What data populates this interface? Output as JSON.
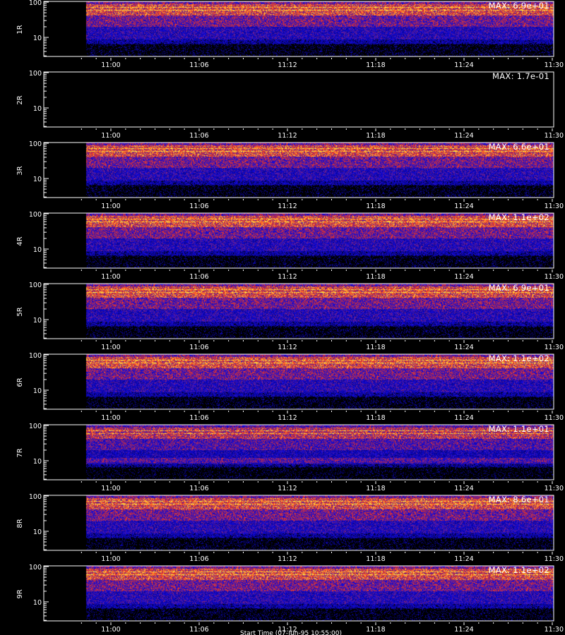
{
  "chart_data": [
    {
      "type": "heatmap",
      "panel_label": "1R",
      "max_label": "MAX: 6.9e+01",
      "empty": false,
      "x_ticks": [
        "11:00",
        "11:06",
        "11:12",
        "11:18",
        "11:24",
        "11:30"
      ],
      "y_ticks": [
        "10",
        "100"
      ],
      "y_scale": "log",
      "colors": {
        "low": "#0a0a8c",
        "mid": "#e0301e",
        "high": "#ffd84a"
      }
    },
    {
      "type": "heatmap",
      "panel_label": "2R",
      "max_label": "MAX: 1.7e-01",
      "empty": true,
      "x_ticks": [
        "11:00",
        "11:06",
        "11:12",
        "11:18",
        "11:24",
        "11:30"
      ],
      "y_ticks": [
        "10",
        "100"
      ],
      "y_scale": "log",
      "colors": {
        "low": "#0a0a8c",
        "mid": "#e0301e",
        "high": "#ffd84a"
      }
    },
    {
      "type": "heatmap",
      "panel_label": "3R",
      "max_label": "MAX: 6.6e+01",
      "empty": false,
      "x_ticks": [
        "11:00",
        "11:06",
        "11:12",
        "11:18",
        "11:24",
        "11:30"
      ],
      "y_ticks": [
        "10",
        "100"
      ],
      "y_scale": "log",
      "colors": {
        "low": "#0a0a8c",
        "mid": "#e0301e",
        "high": "#ffd84a"
      }
    },
    {
      "type": "heatmap",
      "panel_label": "4R",
      "max_label": "MAX: 1.1e+02",
      "empty": false,
      "x_ticks": [
        "11:00",
        "11:06",
        "11:12",
        "11:18",
        "11:24",
        "11:30"
      ],
      "y_ticks": [
        "10",
        "100"
      ],
      "y_scale": "log",
      "colors": {
        "low": "#0a0a8c",
        "mid": "#e0301e",
        "high": "#ffd84a"
      }
    },
    {
      "type": "heatmap",
      "panel_label": "5R",
      "max_label": "MAX: 6.9e+01",
      "empty": false,
      "x_ticks": [
        "11:00",
        "11:06",
        "11:12",
        "11:18",
        "11:24",
        "11:30"
      ],
      "y_ticks": [
        "10",
        "100"
      ],
      "y_scale": "log",
      "colors": {
        "low": "#0a0a8c",
        "mid": "#e0301e",
        "high": "#ffd84a"
      }
    },
    {
      "type": "heatmap",
      "panel_label": "6R",
      "max_label": "MAX: 1.1e+02",
      "empty": false,
      "x_ticks": [
        "11:00",
        "11:06",
        "11:12",
        "11:18",
        "11:24",
        "11:30"
      ],
      "y_ticks": [
        "10",
        "100"
      ],
      "y_scale": "log",
      "colors": {
        "low": "#0a0a8c",
        "mid": "#e0301e",
        "high": "#ffd84a"
      }
    },
    {
      "type": "heatmap",
      "panel_label": "7R",
      "max_label": "MAX: 1.1e+01",
      "empty": false,
      "x_ticks": [
        "11:00",
        "11:06",
        "11:12",
        "11:18",
        "11:24",
        "11:30"
      ],
      "y_ticks": [
        "10",
        "100"
      ],
      "y_scale": "log",
      "colors": {
        "low": "#0a0a8c",
        "mid": "#e0301e",
        "high": "#ffd84a"
      }
    },
    {
      "type": "heatmap",
      "panel_label": "8R",
      "max_label": "MAX: 8.6e+01",
      "empty": false,
      "x_ticks": [
        "11:00",
        "11:06",
        "11:12",
        "11:18",
        "11:24",
        "11:30"
      ],
      "y_ticks": [
        "10",
        "100"
      ],
      "y_scale": "log",
      "colors": {
        "low": "#0a0a8c",
        "mid": "#e0301e",
        "high": "#ffd84a"
      }
    },
    {
      "type": "heatmap",
      "panel_label": "9R",
      "max_label": "MAX: 1.1e+02",
      "empty": false,
      "x_ticks": [
        "11:00",
        "11:06",
        "11:12",
        "11:18",
        "11:24",
        "11:30"
      ],
      "y_ticks": [
        "10",
        "100"
      ],
      "y_scale": "log",
      "colors": {
        "low": "#0a0a8c",
        "mid": "#e0301e",
        "high": "#ffd84a"
      }
    }
  ],
  "footer": {
    "start_time_label": "Start Time (07-Jun-95 10:55:00)"
  }
}
